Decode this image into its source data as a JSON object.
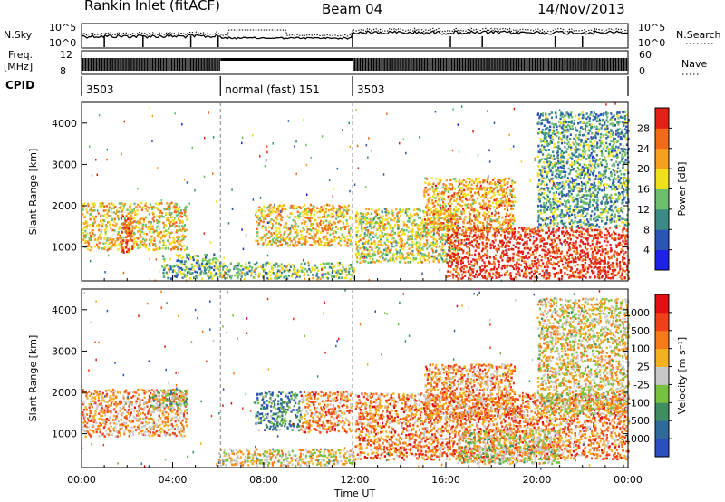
{
  "header": {
    "station": "Rankin Inlet (fitACF)",
    "beam": "Beam 04",
    "date": "14/Nov/2013"
  },
  "top_panels": {
    "nsky_label": "N.Sky",
    "nsky_ticks": [
      "10^5",
      "10^0"
    ],
    "nsearch_label": "N.Search",
    "nsearch_ticks": [
      "10^5",
      "10^0"
    ],
    "freq_label": "Freq.",
    "freq_unit": "[MHz]",
    "freq_ticks": [
      "12",
      "8"
    ],
    "nave_label": "Nave",
    "nave_ticks": [
      "60",
      "0"
    ],
    "cpid_label": "CPID",
    "cpid_segments": [
      {
        "label": "3503",
        "start": 0,
        "end": 6.1
      },
      {
        "label": "normal (fast) 151",
        "start": 6.1,
        "end": 11.9
      },
      {
        "label": "3503",
        "start": 11.9,
        "end": 24
      }
    ]
  },
  "chart_data": [
    {
      "type": "heatmap",
      "title": "",
      "xlabel": "Time UT",
      "ylabel": "Slant Range [km]",
      "xlim": [
        0,
        24
      ],
      "ylim": [
        180,
        4500
      ],
      "x_ticks": [
        "00:00",
        "04:00",
        "08:00",
        "12:00",
        "16:00",
        "20:00",
        "00:00"
      ],
      "y_ticks": [
        1000,
        2000,
        3000,
        4000
      ],
      "colorbar_label": "Power [dB]",
      "colorbar_ticks": [
        "4",
        "8",
        "12",
        "16",
        "20",
        "24",
        "28"
      ],
      "colors": [
        "#1e22e6",
        "#2a55b5",
        "#3c8a85",
        "#6cc06c",
        "#f1e01c",
        "#f7a020",
        "#f06a18",
        "#e22016"
      ],
      "regions": [
        {
          "t0": 0.0,
          "t1": 4.6,
          "r0": 950,
          "r1": 2100,
          "level": 0.62
        },
        {
          "t0": 1.7,
          "t1": 2.2,
          "r0": 850,
          "r1": 1800,
          "level": 0.9
        },
        {
          "t0": 6.0,
          "t1": 12.0,
          "r0": 250,
          "r1": 650,
          "level": 0.45
        },
        {
          "t0": 7.6,
          "t1": 11.8,
          "r0": 1050,
          "r1": 2050,
          "level": 0.65
        },
        {
          "t0": 12.0,
          "t1": 16.5,
          "r0": 650,
          "r1": 1950,
          "level": 0.55
        },
        {
          "t0": 16.0,
          "t1": 24.0,
          "r0": 250,
          "r1": 1500,
          "level": 0.95
        },
        {
          "t0": 15.0,
          "t1": 19.0,
          "r0": 1400,
          "r1": 2700,
          "level": 0.7
        },
        {
          "t0": 20.0,
          "t1": 24.0,
          "r0": 1500,
          "r1": 4300,
          "level": 0.35
        },
        {
          "t0": 3.5,
          "t1": 6.0,
          "r0": 250,
          "r1": 850,
          "level": 0.4
        }
      ]
    },
    {
      "type": "heatmap",
      "title": "",
      "xlabel": "Time UT",
      "ylabel": "Slant Range [km]",
      "xlim": [
        0,
        24
      ],
      "ylim": [
        180,
        4500
      ],
      "x_ticks": [
        "00:00",
        "04:00",
        "08:00",
        "12:00",
        "16:00",
        "20:00",
        "00:00"
      ],
      "y_ticks": [
        1000,
        2000,
        3000,
        4000
      ],
      "colorbar_label": "Velocity [m s⁻¹]",
      "colorbar_ticks": [
        "1000",
        "500",
        "100",
        "25",
        "-25",
        "-100",
        "-500",
        "-1000"
      ],
      "colors": [
        "#2b4fc0",
        "#2f6a9a",
        "#3e8e62",
        "#78c040",
        "#c8c8c8",
        "#f3b020",
        "#f57a18",
        "#f04018",
        "#e01010"
      ],
      "regions": [
        {
          "t0": 0.0,
          "t1": 4.6,
          "r0": 950,
          "r1": 2100,
          "level": 0.67
        },
        {
          "t0": 3.0,
          "t1": 4.6,
          "r0": 1600,
          "r1": 2100,
          "level": 0.4
        },
        {
          "t0": 7.6,
          "t1": 9.6,
          "r0": 1100,
          "r1": 2050,
          "level": 0.25
        },
        {
          "t0": 9.6,
          "t1": 11.8,
          "r0": 1050,
          "r1": 2050,
          "level": 0.7
        },
        {
          "t0": 6.0,
          "t1": 12.0,
          "r0": 250,
          "r1": 650,
          "level": 0.55
        },
        {
          "t0": 12.0,
          "t1": 24.0,
          "r0": 400,
          "r1": 2000,
          "level": 0.72
        },
        {
          "t0": 16.5,
          "t1": 21.0,
          "r0": 300,
          "r1": 1100,
          "level": 0.5
        },
        {
          "t0": 15.0,
          "t1": 19.0,
          "r0": 1400,
          "r1": 2700,
          "level": 0.68
        },
        {
          "t0": 20.0,
          "t1": 24.0,
          "r0": 1500,
          "r1": 4300,
          "level": 0.55
        }
      ]
    }
  ]
}
